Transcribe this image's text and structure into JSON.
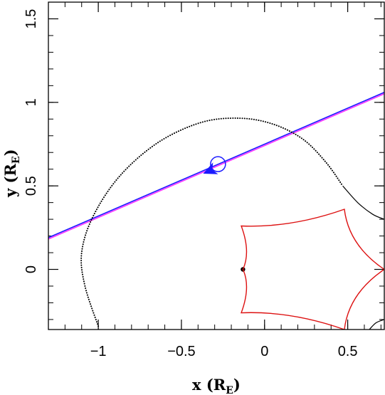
{
  "chart_data": {
    "type": "line",
    "title": "",
    "xlabel": {
      "main": "x (R",
      "sub": "E",
      "close": ")"
    },
    "ylabel": {
      "main": "y (R",
      "sub": "E",
      "close": ")"
    },
    "xlim": [
      -1.3,
      0.72
    ],
    "ylim": [
      -0.36,
      1.6
    ],
    "x_ticks": [
      {
        "value": -1,
        "label": "−1"
      },
      {
        "value": -0.5,
        "label": "−0.5"
      },
      {
        "value": 0,
        "label": "0"
      },
      {
        "value": 0.5,
        "label": "0.5"
      }
    ],
    "y_ticks": [
      {
        "value": 0,
        "label": "0"
      },
      {
        "value": 0.5,
        "label": "0.5"
      },
      {
        "value": 1,
        "label": "1"
      },
      {
        "value": 1.5,
        "label": "1.5"
      }
    ],
    "x_minor_step": 0.1,
    "y_minor_step": 0.1,
    "grid": false,
    "legend": "none",
    "colors": {
      "trajectory": "#1a1aff",
      "trajectory_shadow": "#ff33ff",
      "caustic": "#dd1111",
      "critical_curve": "#000000",
      "lens": "#000000",
      "source_circle": "#1a1aff"
    },
    "series": [
      {
        "kind": "source-trajectory",
        "points": [
          [
            -1.3,
            0.19
          ],
          [
            0.72,
            1.06
          ]
        ],
        "arrow_at": [
          -0.33,
          0.59
        ],
        "arrow_direction": "toward -x"
      },
      {
        "kind": "source-circle",
        "center": [
          -0.28,
          0.63
        ],
        "radius": 0.045
      },
      {
        "kind": "lens-point",
        "position": [
          -0.13,
          0.0
        ]
      },
      {
        "kind": "caustic",
        "vertices": [
          [
            -0.13,
            0.0
          ],
          [
            -0.14,
            0.26
          ],
          [
            0.48,
            0.36
          ],
          [
            0.72,
            0.0
          ],
          [
            0.48,
            -0.36
          ],
          [
            -0.14,
            -0.26
          ]
        ]
      },
      {
        "kind": "critical-curve-dotted",
        "points": [
          [
            -1.0,
            -0.34
          ],
          [
            -1.08,
            -0.1
          ],
          [
            -1.1,
            0.1
          ],
          [
            -1.03,
            0.32
          ],
          [
            -0.87,
            0.56
          ],
          [
            -0.64,
            0.76
          ],
          [
            -0.38,
            0.88
          ],
          [
            -0.15,
            0.905
          ],
          [
            0.05,
            0.87
          ],
          [
            0.23,
            0.78
          ],
          [
            0.37,
            0.64
          ],
          [
            0.47,
            0.5
          ]
        ]
      },
      {
        "kind": "critical-curve-solid",
        "points": [
          [
            0.47,
            0.5
          ],
          [
            0.56,
            0.4
          ],
          [
            0.65,
            0.33
          ],
          [
            0.72,
            0.3
          ]
        ]
      },
      {
        "kind": "critical-curve-corner",
        "points": [
          [
            0.63,
            -0.36
          ],
          [
            0.67,
            -0.32
          ],
          [
            0.72,
            -0.3
          ]
        ]
      }
    ]
  }
}
